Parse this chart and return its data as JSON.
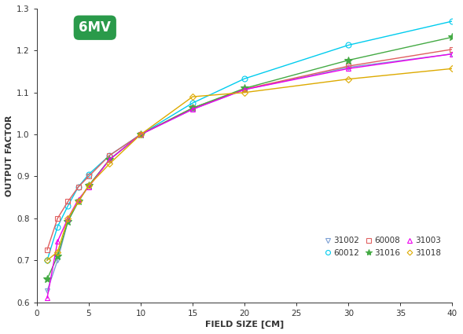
{
  "title": "6MV",
  "xlabel": "FIELD SIZE [CM]",
  "ylabel": "OUTPUT FACTOR",
  "xlim": [
    0,
    40
  ],
  "ylim": [
    0.6,
    1.3
  ],
  "xticks": [
    0,
    5,
    10,
    15,
    20,
    25,
    30,
    35,
    40
  ],
  "yticks": [
    0.6,
    0.7,
    0.8,
    0.9,
    1.0,
    1.1,
    1.2,
    1.3
  ],
  "series": [
    {
      "label": "31002",
      "color": "#7b9fd4",
      "marker": "v",
      "markersize": 5,
      "mfc": "none",
      "x": [
        1,
        2,
        3,
        4,
        5,
        7,
        10,
        15,
        20,
        30,
        40
      ],
      "y": [
        0.627,
        0.7,
        0.793,
        0.84,
        0.878,
        0.94,
        1.0,
        1.06,
        1.107,
        1.16,
        1.192
      ]
    },
    {
      "label": "60012",
      "color": "#00ccee",
      "marker": "o",
      "markersize": 5,
      "mfc": "none",
      "x": [
        1,
        2,
        3,
        4,
        5,
        7,
        10,
        15,
        20,
        30,
        40
      ],
      "y": [
        0.7,
        0.78,
        0.83,
        0.875,
        0.905,
        0.95,
        1.0,
        1.075,
        1.133,
        1.213,
        1.27
      ]
    },
    {
      "label": "60008",
      "color": "#e06060",
      "marker": "s",
      "markersize": 5,
      "mfc": "none",
      "x": [
        1,
        2,
        3,
        4,
        5,
        7,
        10,
        15,
        20,
        30,
        40
      ],
      "y": [
        0.725,
        0.8,
        0.84,
        0.875,
        0.9,
        0.95,
        1.0,
        1.063,
        1.108,
        1.163,
        1.203
      ]
    },
    {
      "label": "31016",
      "color": "#44aa44",
      "marker": "*",
      "markersize": 7,
      "mfc": "#44aa44",
      "x": [
        1,
        2,
        3,
        4,
        5,
        7,
        10,
        15,
        20,
        30,
        40
      ],
      "y": [
        0.655,
        0.71,
        0.793,
        0.84,
        0.878,
        0.94,
        1.0,
        1.063,
        1.11,
        1.177,
        1.232
      ]
    },
    {
      "label": "31003",
      "color": "#ee00ee",
      "marker": "^",
      "markersize": 5,
      "mfc": "none",
      "x": [
        1,
        2,
        3,
        4,
        5,
        7,
        10,
        15,
        20,
        30,
        40
      ],
      "y": [
        0.61,
        0.745,
        0.8,
        0.845,
        0.875,
        0.94,
        1.0,
        1.06,
        1.107,
        1.157,
        1.192
      ]
    },
    {
      "label": "31018",
      "color": "#ddaa00",
      "marker": "D",
      "markersize": 4,
      "mfc": "none",
      "x": [
        1,
        2,
        3,
        4,
        5,
        7,
        10,
        15,
        20,
        30,
        40
      ],
      "y": [
        0.7,
        0.72,
        0.8,
        0.84,
        0.878,
        0.93,
        1.0,
        1.09,
        1.1,
        1.132,
        1.157
      ]
    }
  ],
  "legend_order": [
    0,
    1,
    2,
    3,
    4,
    5
  ],
  "badge_color": "#2a9a4a",
  "badge_text": "6MV",
  "badge_text_color": "#ffffff"
}
